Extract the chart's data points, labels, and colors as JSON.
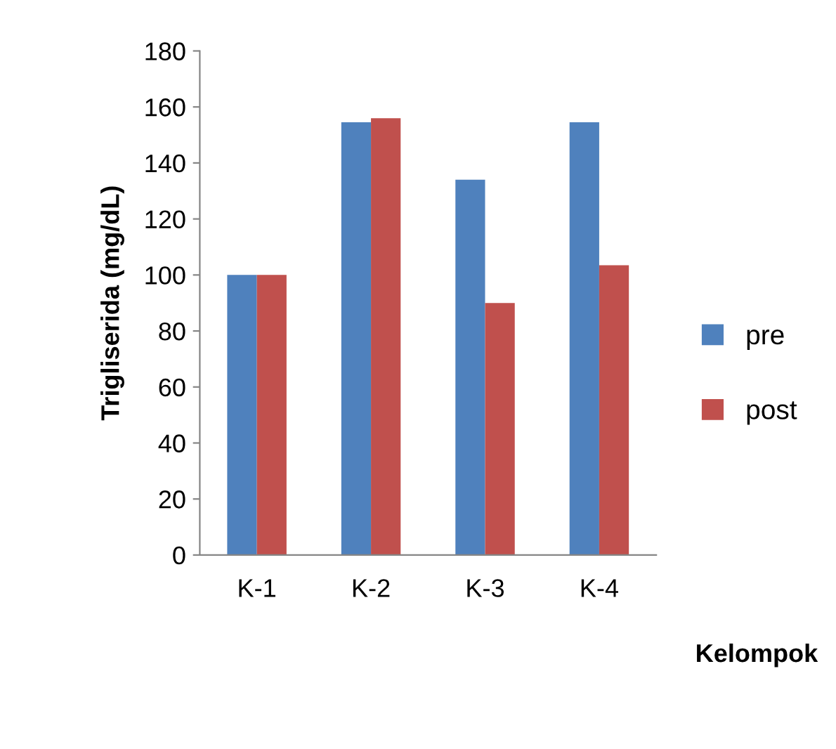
{
  "chart_data": {
    "type": "bar",
    "xlabel": "Kelompok",
    "ylabel": "Trigliserida (mg/dL)",
    "categories": [
      "K-1",
      "K-2",
      "K-3",
      "K-4"
    ],
    "series": [
      {
        "name": "pre",
        "color": "#4f81bd",
        "values": [
          100,
          154.5,
          134,
          154.5
        ]
      },
      {
        "name": "post",
        "color": "#c0504d",
        "values": [
          100,
          156,
          90,
          103.5
        ]
      }
    ],
    "ylim": [
      0,
      180
    ],
    "yticks": [
      0,
      20,
      40,
      60,
      80,
      100,
      120,
      140,
      160,
      180
    ],
    "grid": false,
    "legend": "right"
  }
}
